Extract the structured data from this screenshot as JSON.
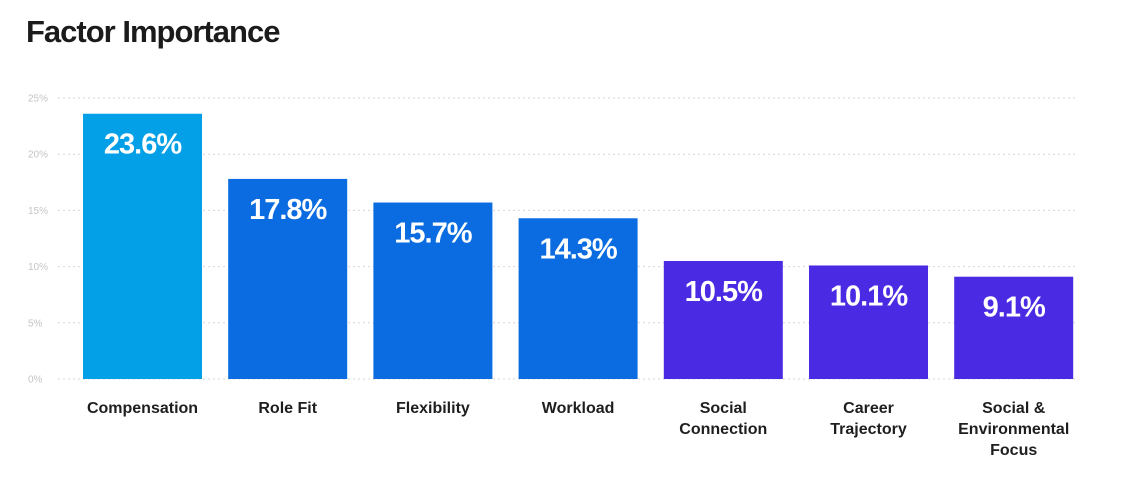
{
  "chart_data": {
    "type": "bar",
    "title": "Factor Importance",
    "categories": [
      "Compensation",
      "Role Fit",
      "Flexibility",
      "Workload",
      "Social Connection",
      "Career Trajectory",
      "Social & Environmental Focus"
    ],
    "category_lines": [
      [
        "Compensation"
      ],
      [
        "Role Fit"
      ],
      [
        "Flexibility"
      ],
      [
        "Workload"
      ],
      [
        "Social",
        "Connection"
      ],
      [
        "Career",
        "Trajectory"
      ],
      [
        "Social &",
        "Environmental",
        "Focus"
      ]
    ],
    "values": [
      23.6,
      17.8,
      15.7,
      14.3,
      10.5,
      10.1,
      9.1
    ],
    "value_labels": [
      "23.6%",
      "17.8%",
      "15.7%",
      "14.3%",
      "10.5%",
      "10.1%",
      "9.1%"
    ],
    "bar_colors": [
      "#03A0E8",
      "#0A6CE0",
      "#0A6CE0",
      "#0A6CE0",
      "#4A2BE3",
      "#4A2BE3",
      "#4A2BE3"
    ],
    "ylim": [
      0,
      25
    ],
    "yticks": [
      0,
      5,
      10,
      15,
      20,
      25
    ],
    "ytick_labels": [
      "0%",
      "5%",
      "10%",
      "15%",
      "20%",
      "25%"
    ],
    "grid": true,
    "grid_color": "#d6d6d6",
    "xlabel": "",
    "ylabel": ""
  }
}
